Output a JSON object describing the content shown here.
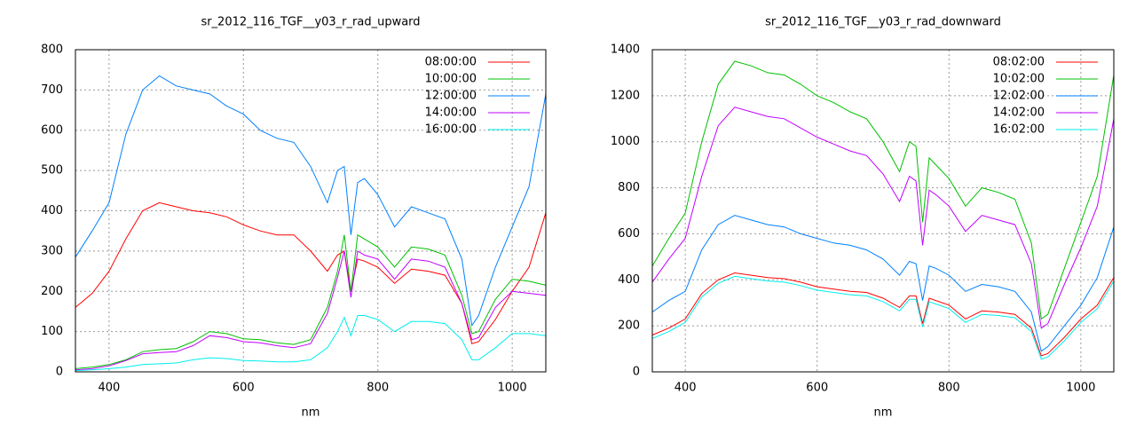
{
  "chart_data": [
    {
      "type": "line",
      "title": "sr_2012_116_TGF__y03_r_rad_upward",
      "x_label": "nm",
      "x": [
        350,
        375,
        400,
        425,
        450,
        475,
        500,
        525,
        550,
        575,
        600,
        625,
        650,
        675,
        700,
        725,
        740,
        750,
        760,
        770,
        780,
        800,
        825,
        850,
        875,
        900,
        925,
        940,
        950,
        975,
        1000,
        1025,
        1050
      ],
      "xlim": [
        350,
        1050
      ],
      "xticks": [
        400,
        600,
        800,
        1000
      ],
      "ylim": [
        0,
        800
      ],
      "yticks": [
        0,
        100,
        200,
        300,
        400,
        500,
        600,
        700,
        800
      ],
      "grid": true,
      "legend": "top-right",
      "series": [
        {
          "name": "08:00:00",
          "color": "#ff0000",
          "values": [
            160,
            195,
            250,
            330,
            400,
            420,
            410,
            400,
            395,
            385,
            365,
            350,
            340,
            340,
            300,
            250,
            290,
            300,
            200,
            280,
            275,
            260,
            220,
            255,
            250,
            240,
            170,
            70,
            75,
            130,
            200,
            260,
            395
          ]
        },
        {
          "name": "10:00:00",
          "color": "#00c000",
          "values": [
            8,
            12,
            18,
            30,
            50,
            55,
            58,
            75,
            100,
            95,
            82,
            80,
            72,
            68,
            80,
            160,
            250,
            340,
            200,
            340,
            330,
            310,
            260,
            310,
            305,
            290,
            190,
            95,
            100,
            180,
            230,
            225,
            215
          ]
        },
        {
          "name": "12:00:00",
          "color": "#0080ff",
          "values": [
            285,
            350,
            420,
            590,
            700,
            735,
            710,
            700,
            690,
            660,
            640,
            600,
            580,
            570,
            510,
            420,
            500,
            510,
            340,
            470,
            480,
            440,
            360,
            410,
            395,
            380,
            280,
            115,
            140,
            260,
            360,
            460,
            690
          ]
        },
        {
          "name": "14:00:00",
          "color": "#c000ff",
          "values": [
            5,
            8,
            15,
            28,
            45,
            48,
            50,
            65,
            90,
            85,
            75,
            72,
            65,
            60,
            70,
            145,
            235,
            300,
            185,
            300,
            290,
            280,
            230,
            280,
            275,
            260,
            170,
            80,
            85,
            160,
            200,
            195,
            190
          ]
        },
        {
          "name": "16:00:00",
          "color": "#00eeee",
          "values": [
            3,
            5,
            8,
            12,
            18,
            20,
            22,
            30,
            35,
            33,
            28,
            27,
            25,
            25,
            30,
            60,
            100,
            135,
            90,
            140,
            140,
            130,
            100,
            125,
            125,
            120,
            80,
            30,
            30,
            60,
            95,
            95,
            90
          ]
        }
      ]
    },
    {
      "type": "line",
      "title": "sr_2012_116_TGF__y03_r_rad_downward",
      "x_label": "nm",
      "x": [
        350,
        375,
        400,
        425,
        450,
        475,
        500,
        525,
        550,
        575,
        600,
        625,
        650,
        675,
        700,
        725,
        740,
        750,
        760,
        770,
        780,
        800,
        825,
        850,
        875,
        900,
        925,
        940,
        950,
        975,
        1000,
        1025,
        1050
      ],
      "xlim": [
        350,
        1050
      ],
      "xticks": [
        400,
        600,
        800,
        1000
      ],
      "ylim": [
        0,
        1400
      ],
      "yticks": [
        0,
        200,
        400,
        600,
        800,
        1000,
        1200,
        1400
      ],
      "grid": true,
      "legend": "top-right",
      "series": [
        {
          "name": "08:02:00",
          "color": "#ff0000",
          "values": [
            160,
            190,
            230,
            340,
            400,
            430,
            420,
            410,
            405,
            390,
            370,
            360,
            350,
            345,
            320,
            280,
            330,
            330,
            210,
            320,
            310,
            290,
            230,
            265,
            260,
            250,
            190,
            70,
            80,
            150,
            230,
            290,
            410
          ]
        },
        {
          "name": "10:02:00",
          "color": "#00c000",
          "values": [
            460,
            580,
            690,
            1000,
            1250,
            1350,
            1330,
            1300,
            1290,
            1250,
            1200,
            1170,
            1130,
            1100,
            1000,
            870,
            1000,
            980,
            650,
            930,
            900,
            840,
            720,
            800,
            780,
            750,
            560,
            230,
            250,
            450,
            650,
            850,
            1290
          ]
        },
        {
          "name": "12:02:00",
          "color": "#0080ff",
          "values": [
            260,
            310,
            350,
            530,
            640,
            680,
            660,
            640,
            630,
            600,
            580,
            560,
            550,
            530,
            490,
            420,
            480,
            470,
            310,
            460,
            450,
            420,
            350,
            380,
            370,
            350,
            260,
            90,
            110,
            200,
            290,
            410,
            630
          ]
        },
        {
          "name": "14:02:00",
          "color": "#c000ff",
          "values": [
            390,
            490,
            580,
            850,
            1070,
            1150,
            1130,
            1110,
            1100,
            1060,
            1020,
            990,
            960,
            940,
            860,
            740,
            850,
            830,
            550,
            790,
            770,
            720,
            610,
            680,
            660,
            640,
            470,
            190,
            210,
            380,
            540,
            720,
            1100
          ]
        },
        {
          "name": "16:02:00",
          "color": "#00eeee",
          "values": [
            145,
            175,
            215,
            325,
            385,
            415,
            405,
            395,
            390,
            375,
            355,
            345,
            335,
            330,
            305,
            265,
            315,
            315,
            195,
            305,
            295,
            275,
            215,
            250,
            245,
            235,
            175,
            55,
            65,
            135,
            215,
            275,
            395
          ]
        }
      ]
    }
  ]
}
